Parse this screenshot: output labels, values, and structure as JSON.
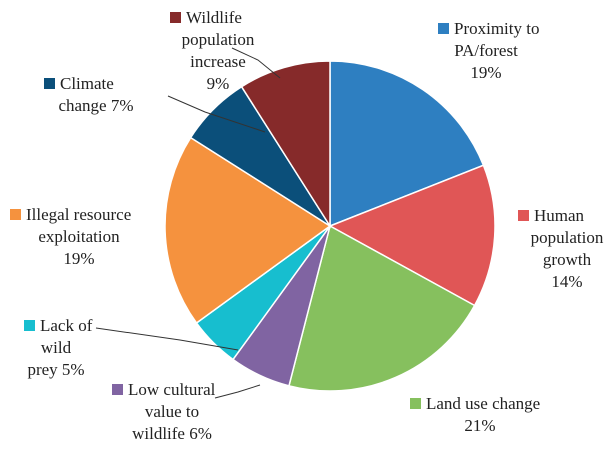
{
  "chart_data": {
    "type": "pie",
    "start_angle_deg": 0,
    "direction": "clockwise",
    "slices": [
      {
        "label_lines": [
          "Proximity to",
          "PA/forest",
          "19%"
        ],
        "value": 19,
        "color": "#2E7FC1"
      },
      {
        "label_lines": [
          "Human",
          "population",
          "growth",
          "14%"
        ],
        "value": 14,
        "color": "#E05656"
      },
      {
        "label_lines": [
          "Land use change",
          "21%"
        ],
        "value": 21,
        "color": "#86C05E"
      },
      {
        "label_lines": [
          "Low cultural",
          "value to",
          "wildlife 6%"
        ],
        "value": 6,
        "color": "#8064A2"
      },
      {
        "label_lines": [
          "Lack of",
          "wild",
          "prey 5%"
        ],
        "value": 5,
        "color": "#17BECF"
      },
      {
        "label_lines": [
          "Illegal resource",
          "exploitation",
          "19%"
        ],
        "value": 19,
        "color": "#F5923E"
      },
      {
        "label_lines": [
          "Climate",
          "change 7%"
        ],
        "value": 7,
        "color": "#0B4F7A"
      },
      {
        "label_lines": [
          "Wildlife",
          "population",
          "increase",
          "9%"
        ],
        "value": 9,
        "color": "#862A2A"
      }
    ]
  }
}
